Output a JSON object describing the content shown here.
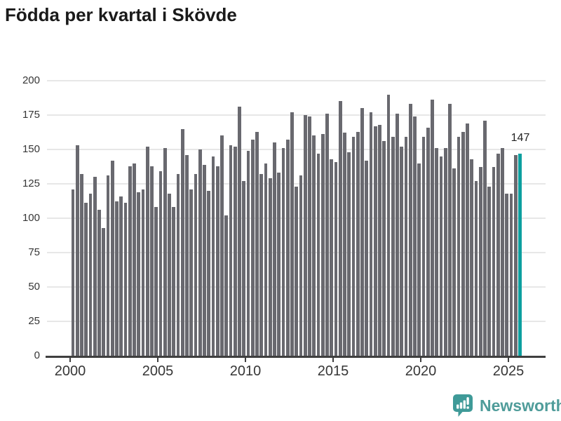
{
  "title": "Födda per kvartal i Skövde",
  "annotation": {
    "label": "147"
  },
  "footer": {
    "brand": "Newsworthy"
  },
  "colors": {
    "bar": "#69696f",
    "highlight": "#0c9f9f",
    "gridline": "#e7e7e7",
    "axis": "#3f3f3f",
    "title_text": "#1a1a1a",
    "tick_text": "#363636",
    "logo_icon": "#3f9a98",
    "logo_text": "#4f9c9a"
  },
  "y_axis": {
    "ticks": [
      0,
      25,
      50,
      75,
      100,
      125,
      150,
      175,
      200
    ]
  },
  "x_axis": {
    "tick_labels": [
      "2000",
      "2005",
      "2010",
      "2015",
      "2020",
      "2025"
    ]
  },
  "chart_data": {
    "type": "bar",
    "title": "Födda per kvartal i Skövde",
    "xlabel": "",
    "ylabel": "",
    "ylim": [
      0,
      200
    ],
    "grid": true,
    "legend": "none",
    "highlight_index": 102,
    "highlight_label": "147",
    "x": [
      "2000 Q1",
      "2000 Q2",
      "2000 Q3",
      "2000 Q4",
      "2001 Q1",
      "2001 Q2",
      "2001 Q3",
      "2001 Q4",
      "2002 Q1",
      "2002 Q2",
      "2002 Q3",
      "2002 Q4",
      "2003 Q1",
      "2003 Q2",
      "2003 Q3",
      "2003 Q4",
      "2004 Q1",
      "2004 Q2",
      "2004 Q3",
      "2004 Q4",
      "2005 Q1",
      "2005 Q2",
      "2005 Q3",
      "2005 Q4",
      "2006 Q1",
      "2006 Q2",
      "2006 Q3",
      "2006 Q4",
      "2007 Q1",
      "2007 Q2",
      "2007 Q3",
      "2007 Q4",
      "2008 Q1",
      "2008 Q2",
      "2008 Q3",
      "2008 Q4",
      "2009 Q1",
      "2009 Q2",
      "2009 Q3",
      "2009 Q4",
      "2010 Q1",
      "2010 Q2",
      "2010 Q3",
      "2010 Q4",
      "2011 Q1",
      "2011 Q2",
      "2011 Q3",
      "2011 Q4",
      "2012 Q1",
      "2012 Q2",
      "2012 Q3",
      "2012 Q4",
      "2013 Q1",
      "2013 Q2",
      "2013 Q3",
      "2013 Q4",
      "2014 Q1",
      "2014 Q2",
      "2014 Q3",
      "2014 Q4",
      "2015 Q1",
      "2015 Q2",
      "2015 Q3",
      "2015 Q4",
      "2016 Q1",
      "2016 Q2",
      "2016 Q3",
      "2016 Q4",
      "2017 Q1",
      "2017 Q2",
      "2017 Q3",
      "2017 Q4",
      "2018 Q1",
      "2018 Q2",
      "2018 Q3",
      "2018 Q4",
      "2019 Q1",
      "2019 Q2",
      "2019 Q3",
      "2019 Q4",
      "2020 Q1",
      "2020 Q2",
      "2020 Q3",
      "2020 Q4",
      "2021 Q1",
      "2021 Q2",
      "2021 Q3",
      "2021 Q4",
      "2022 Q1",
      "2022 Q2",
      "2022 Q3",
      "2022 Q4",
      "2023 Q1",
      "2023 Q2",
      "2023 Q3",
      "2023 Q4",
      "2024 Q1",
      "2024 Q2",
      "2024 Q3",
      "2024 Q4",
      "2025 Q1",
      "2025 Q2",
      "2025 Q3"
    ],
    "values": [
      121,
      153,
      132,
      111,
      118,
      130,
      106,
      93,
      131,
      142,
      112,
      116,
      111,
      138,
      140,
      119,
      121,
      152,
      138,
      108,
      134,
      151,
      118,
      108,
      132,
      165,
      146,
      121,
      132,
      150,
      139,
      120,
      145,
      138,
      160,
      102,
      153,
      152,
      181,
      127,
      149,
      157,
      163,
      132,
      140,
      129,
      155,
      133,
      151,
      157,
      177,
      123,
      131,
      175,
      174,
      160,
      147,
      161,
      176,
      143,
      141,
      185,
      162,
      148,
      159,
      163,
      180,
      142,
      177,
      167,
      168,
      156,
      190,
      159,
      176,
      152,
      159,
      183,
      174,
      140,
      159,
      166,
      186,
      151,
      145,
      151,
      183,
      136,
      159,
      163,
      169,
      143,
      127,
      137,
      171,
      123,
      137,
      147,
      151,
      118,
      118,
      146,
      147
    ]
  }
}
